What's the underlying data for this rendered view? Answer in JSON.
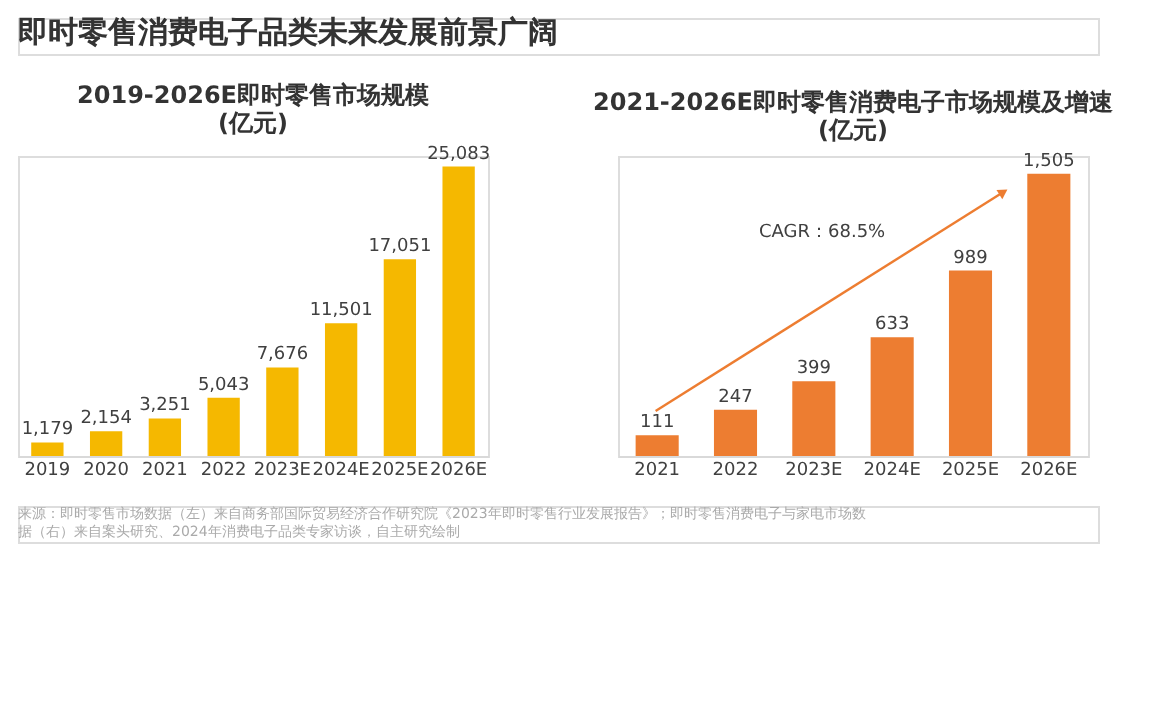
{
  "chart_data": [
    {
      "type": "bar",
      "title": "2019-2026E即时零售市场规模\n(亿元)",
      "categories": [
        "2019",
        "2020",
        "2021",
        "2022",
        "2023E",
        "2024E",
        "2025E",
        "2026E"
      ],
      "values": [
        1179,
        2154,
        3251,
        5043,
        7676,
        11501,
        17051,
        25083
      ],
      "color": "#f5b800",
      "value_labels": [
        "1,179",
        "2,154",
        "3,251",
        "5,043",
        "7,676",
        "11,501",
        "17,051",
        "25,083"
      ],
      "tick_labels": "x",
      "grid": false,
      "annotations": [
        "即时零售消费电子品类未来发展前景广阔",
        "来源：即时零售市场数据（左）来自商务部国际贸易经济合作研究院《2023年即时零售行业发展报告》；即时零售消费电子与家电市场数据（右）来自案头研究、2024年消费电子品类专家访谈，自主研究绘制"
      ]
    },
    {
      "type": "bar",
      "title": "2021-2026E即时零售消费电子市场规模及增速\n(亿元)",
      "categories": [
        "2021",
        "2022",
        "2023E",
        "2024E",
        "2025E",
        "2026E"
      ],
      "values": [
        111,
        247,
        399,
        633,
        989,
        1505
      ],
      "color": "#ed7d31",
      "value_labels": [
        "111",
        "247",
        "399",
        "633",
        "989",
        "1,505"
      ],
      "tick_labels": "x",
      "grid": false,
      "annotations": [
        "CAGR：68.5%"
      ]
    }
  ]
}
